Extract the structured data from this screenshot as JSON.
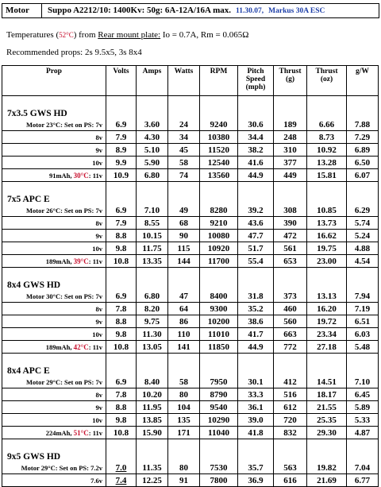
{
  "header": {
    "label": "Motor",
    "spec": "Suppo A2212/10: 1400Kv: 50g: 6A-12A/16A max.",
    "date": "11.30.07,",
    "esc": "Markus 30A ESC"
  },
  "temps": {
    "prefix": "Temperatures (",
    "temp": "52°C",
    "mid": ") from ",
    "plate": "Rear mount plate:",
    "suffix": " Io = 0.7A, Rm = 0.065Ω"
  },
  "recommended": "Recommended props: 2s 9.5x5, 3s 8x4",
  "columns": [
    "Prop",
    "Volts",
    "Amps",
    "Watts",
    "RPM",
    "Pitch Speed (mph)",
    "Thrust (g)",
    "Thrust (oz)",
    "g/W"
  ],
  "groups": [
    {
      "name": "7x3.5 GWS HD",
      "rows": [
        {
          "label": "Motor 23°C: Set on PS: 7v",
          "values": [
            "6.9",
            "3.60",
            "24",
            "9240",
            "30.6",
            "189",
            "6.66",
            "7.88"
          ]
        },
        {
          "label": "8v",
          "values": [
            "7.9",
            "4.30",
            "34",
            "10380",
            "34.4",
            "248",
            "8.73",
            "7.29"
          ]
        },
        {
          "label": "9v",
          "values": [
            "8.9",
            "5.10",
            "45",
            "11520",
            "38.2",
            "310",
            "10.92",
            "6.89"
          ]
        },
        {
          "label": "10v",
          "values": [
            "9.9",
            "5.90",
            "58",
            "12540",
            "41.6",
            "377",
            "13.28",
            "6.50"
          ]
        },
        {
          "label": "91mAh, ",
          "temp": "30°C",
          "tail": ": 11v",
          "values": [
            "10.9",
            "6.80",
            "74",
            "13560",
            "44.9",
            "449",
            "15.81",
            "6.07"
          ]
        }
      ]
    },
    {
      "name": "7x5 APC E",
      "rows": [
        {
          "label": "Motor 26°C: Set on PS: 7v",
          "values": [
            "6.9",
            "7.10",
            "49",
            "8280",
            "39.2",
            "308",
            "10.85",
            "6.29"
          ]
        },
        {
          "label": "8v",
          "values": [
            "7.9",
            "8.55",
            "68",
            "9210",
            "43.6",
            "390",
            "13.73",
            "5.74"
          ]
        },
        {
          "label": "9v",
          "values": [
            "8.8",
            "10.15",
            "90",
            "10080",
            "47.7",
            "472",
            "16.62",
            "5.24"
          ]
        },
        {
          "label": "10v",
          "values": [
            "9.8",
            "11.75",
            "115",
            "10920",
            "51.7",
            "561",
            "19.75",
            "4.88"
          ]
        },
        {
          "label": "189mAh, ",
          "temp": "39°C",
          "tail": ": 11v",
          "values": [
            "10.8",
            "13.35",
            "144",
            "11700",
            "55.4",
            "653",
            "23.00",
            "4.54"
          ]
        }
      ]
    },
    {
      "name": "8x4 GWS HD",
      "rows": [
        {
          "label": "Motor 30°C: Set on PS: 7v",
          "values": [
            "6.9",
            "6.80",
            "47",
            "8400",
            "31.8",
            "373",
            "13.13",
            "7.94"
          ]
        },
        {
          "label": "8v",
          "values": [
            "7.8",
            "8.20",
            "64",
            "9300",
            "35.2",
            "460",
            "16.20",
            "7.19"
          ]
        },
        {
          "label": "9v",
          "values": [
            "8.8",
            "9.75",
            "86",
            "10200",
            "38.6",
            "560",
            "19.72",
            "6.51"
          ]
        },
        {
          "label": "10v",
          "values": [
            "9.8",
            "11.30",
            "110",
            "11010",
            "41.7",
            "663",
            "23.34",
            "6.03"
          ]
        },
        {
          "label": "189mAh, ",
          "temp": "42°C",
          "tail": ": 11v",
          "values": [
            "10.8",
            "13.05",
            "141",
            "11850",
            "44.9",
            "772",
            "27.18",
            "5.48"
          ]
        }
      ]
    },
    {
      "name": "8x4 APC E",
      "rows": [
        {
          "label": "Motor 29°C: Set on PS: 7v",
          "values": [
            "6.9",
            "8.40",
            "58",
            "7950",
            "30.1",
            "412",
            "14.51",
            "7.10"
          ]
        },
        {
          "label": "8v",
          "values": [
            "7.8",
            "10.20",
            "80",
            "8790",
            "33.3",
            "516",
            "18.17",
            "6.45"
          ]
        },
        {
          "label": "9v",
          "values": [
            "8.8",
            "11.95",
            "104",
            "9540",
            "36.1",
            "612",
            "21.55",
            "5.89"
          ]
        },
        {
          "label": "10v",
          "values": [
            "9.8",
            "13.85",
            "135",
            "10290",
            "39.0",
            "720",
            "25.35",
            "5.33"
          ]
        },
        {
          "label": "224mAh, ",
          "temp": "51°C",
          "tail": ": 11v",
          "values": [
            "10.8",
            "15.90",
            "171",
            "11040",
            "41.8",
            "832",
            "29.30",
            "4.87"
          ]
        }
      ]
    },
    {
      "name": "9x5 GWS HD",
      "rows": [
        {
          "label": "Motor 29°C: Set on PS: 7.2v",
          "values": [
            "7.0",
            "11.35",
            "80",
            "7530",
            "35.7",
            "563",
            "19.82",
            "7.04"
          ],
          "underline": true
        },
        {
          "label": "7.6v",
          "values": [
            "7.4",
            "12.25",
            "91",
            "7800",
            "36.9",
            "616",
            "21.69",
            "6.77"
          ],
          "underline": true
        }
      ]
    }
  ]
}
